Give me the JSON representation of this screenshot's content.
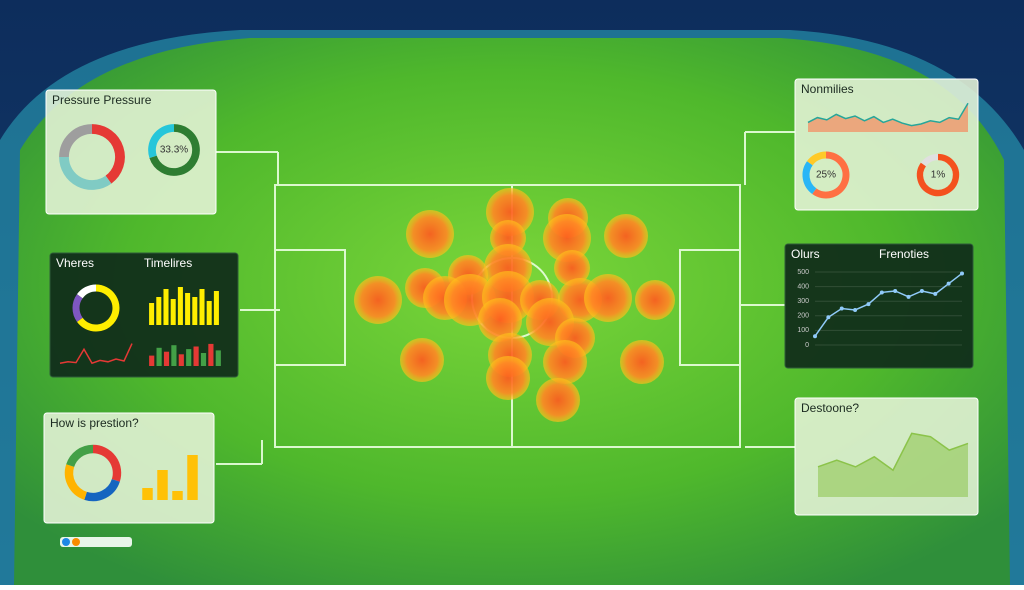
{
  "panels": [
    {
      "title": "Pressure Pressure",
      "charts": [
        {
          "type": "donut",
          "values": [
            40,
            35,
            25
          ],
          "colors": [
            "#e53935",
            "#80cbc4",
            "#9e9e9e"
          ]
        },
        {
          "type": "donut",
          "values": [
            70,
            30
          ],
          "colors": [
            "#2e7d32",
            "#26c6da"
          ],
          "label": "33.3%"
        }
      ]
    },
    {
      "title": "Nonmilies",
      "charts": [
        {
          "type": "line",
          "values": [
            30,
            45,
            38,
            55,
            42,
            50,
            35,
            48,
            30,
            40,
            28,
            20,
            25,
            35,
            30,
            45,
            40,
            90
          ],
          "colors": [
            "#26a69a",
            "#ff7043"
          ],
          "ylim": [
            0,
            100
          ],
          "fill": true
        },
        {
          "type": "donut",
          "values": [
            60,
            25,
            15
          ],
          "colors": [
            "#ff7043",
            "#29b6f6",
            "#ffca28"
          ],
          "label": "25%"
        },
        {
          "type": "donut",
          "values": [
            85,
            15
          ],
          "colors": [
            "#f4511e",
            "#e0e0e0"
          ],
          "label": "1%"
        }
      ]
    },
    {
      "title": "Vheres",
      "title2": "Timelires",
      "charts": [
        {
          "type": "donut",
          "values": [
            65,
            20,
            15
          ],
          "colors": [
            "#ffee00",
            "#7e57c2",
            "#ffffff"
          ]
        },
        {
          "type": "bars",
          "values": [
            55,
            70,
            90,
            65,
            95,
            80,
            70,
            90,
            60,
            85
          ],
          "colors": [
            "#ffee00"
          ],
          "ylim": [
            0,
            100
          ]
        },
        {
          "type": "line",
          "values": [
            10,
            15,
            12,
            60,
            10,
            20,
            15,
            25,
            18,
            80
          ],
          "colors": [
            "#e53935"
          ],
          "ylim": [
            0,
            100
          ]
        },
        {
          "type": "bars",
          "values": [
            40,
            70,
            55,
            80,
            45,
            65,
            75,
            50,
            85,
            60
          ],
          "colors": [
            "#e53935",
            "#43a047"
          ],
          "ylim": [
            0,
            100
          ]
        }
      ]
    },
    {
      "title": "Olurs",
      "title2": "Frenoties",
      "charts": [
        {
          "type": "line",
          "values": [
            60,
            190,
            250,
            240,
            280,
            360,
            370,
            330,
            370,
            350,
            420,
            490
          ],
          "colors": [
            "#90caf9"
          ],
          "ylim": [
            0,
            500
          ],
          "yticks": [
            0,
            100,
            200,
            300,
            400,
            500
          ]
        }
      ]
    },
    {
      "title": "How is prestion?",
      "charts": [
        {
          "type": "donut",
          "values": [
            30,
            25,
            25,
            20
          ],
          "colors": [
            "#e53935",
            "#1565c0",
            "#ffb300",
            "#43a047"
          ]
        },
        {
          "type": "bars",
          "values": [
            20,
            50,
            15,
            75
          ],
          "colors": [
            "#ffc107"
          ],
          "ylim": [
            0,
            100
          ]
        }
      ]
    },
    {
      "title": "Destoone?",
      "charts": [
        {
          "type": "line",
          "values": [
            45,
            55,
            45,
            60,
            40,
            95,
            90,
            70,
            80
          ],
          "colors": [
            "#8bc34a"
          ],
          "ylim": [
            0,
            100
          ],
          "fill": true
        }
      ]
    }
  ]
}
